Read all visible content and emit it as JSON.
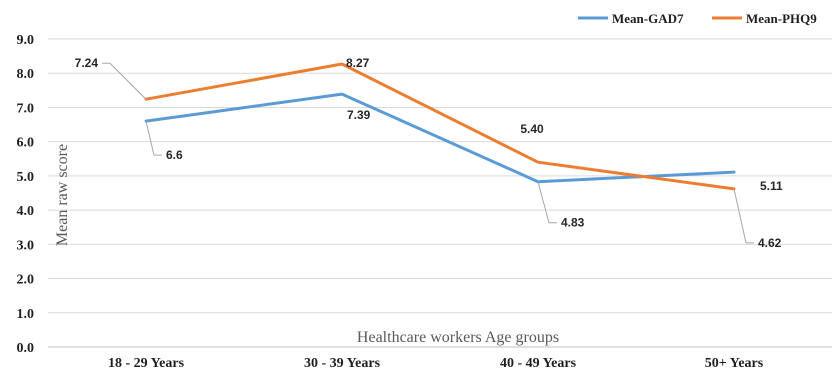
{
  "chart_data": {
    "type": "line",
    "categories": [
      "18 - 29 Years",
      "30 - 39 Years",
      "40 - 49 Years",
      "50+ Years"
    ],
    "series": [
      {
        "name": "Mean-GAD7",
        "color": "#5B9BD5",
        "values": [
          6.6,
          7.39,
          4.83,
          5.11
        ],
        "labels": [
          "6.6",
          "7.39",
          "4.83",
          "5.11"
        ]
      },
      {
        "name": "Mean-PHQ9",
        "color": "#ED7D31",
        "values": [
          7.24,
          8.27,
          5.4,
          4.62
        ],
        "labels": [
          "7.24",
          "8.27",
          "5.40",
          "4.62"
        ]
      }
    ],
    "ylim": [
      0,
      9
    ],
    "yticks": [
      "0.0",
      "1.0",
      "2.0",
      "3.0",
      "4.0",
      "5.0",
      "6.0",
      "7.0",
      "8.0",
      "9.0"
    ],
    "xlabel": "Healthcare workers Age groups",
    "ylabel": "Mean raw score",
    "grid": true,
    "legend_position": "top-right"
  }
}
